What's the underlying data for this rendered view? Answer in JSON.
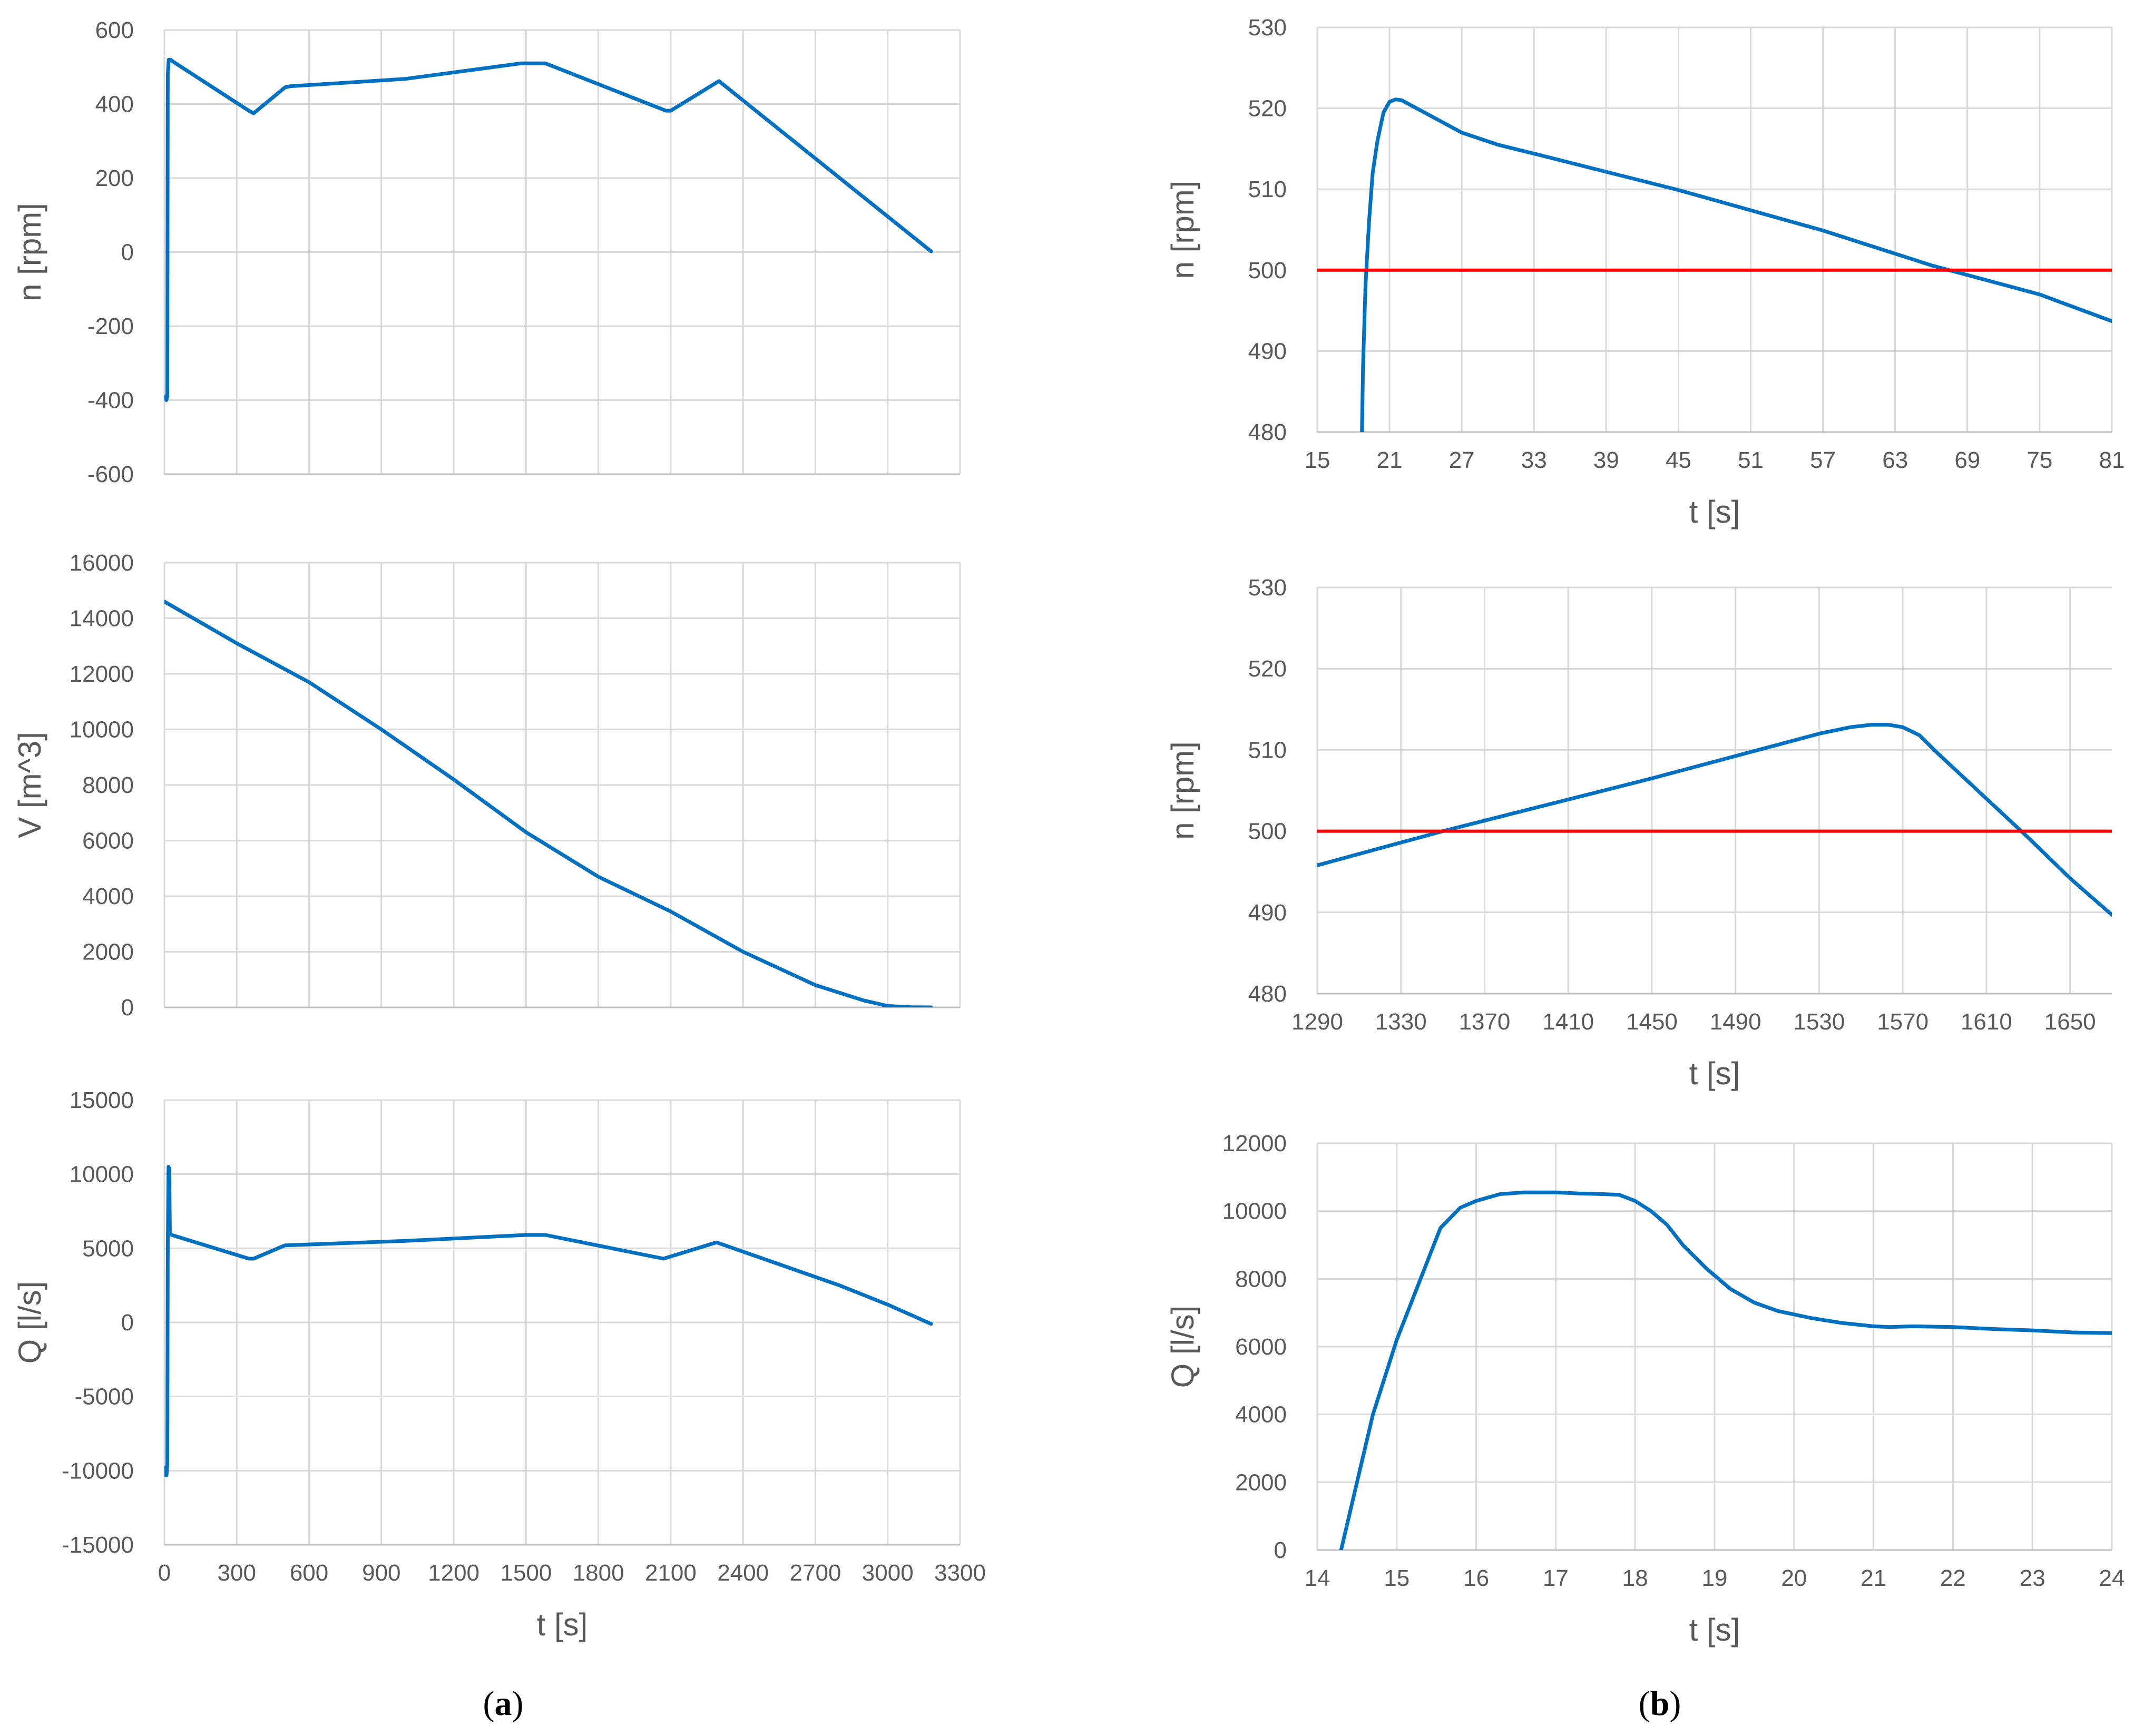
{
  "colors": {
    "series": "#0070c0",
    "reference": "#ff0000",
    "grid": "#d9d9d9",
    "text": "#595959"
  },
  "panel_labels": {
    "a": {
      "open": "(",
      "letter": "a",
      "close": ")"
    },
    "b": {
      "open": "(",
      "letter": "b",
      "close": ")"
    }
  },
  "chart_data": [
    {
      "id": "a1",
      "type": "line",
      "xlabel": "",
      "ylabel": "n [rpm]",
      "xlim": [
        0,
        3300
      ],
      "ylim": [
        -600,
        600
      ],
      "grid": true,
      "x_ticks_shown": false,
      "x_ticks": [
        0,
        300,
        600,
        900,
        1200,
        1500,
        1800,
        2100,
        2400,
        2700,
        3000,
        3300
      ],
      "y_ticks": [
        -600,
        -400,
        -200,
        0,
        200,
        400,
        600
      ],
      "series": [
        {
          "name": "n",
          "x": [
            0,
            8,
            12,
            14,
            18,
            25,
            35,
            350,
            370,
            500,
            520,
            1000,
            1480,
            1580,
            2080,
            2100,
            2300,
            3180
          ],
          "y": [
            -390,
            -400,
            -390,
            480,
            520,
            520,
            515,
            382,
            375,
            445,
            448,
            468,
            510,
            510,
            382,
            382,
            462,
            2
          ]
        }
      ]
    },
    {
      "id": "a2",
      "type": "line",
      "xlabel": "",
      "ylabel": "V [m^3]",
      "xlim": [
        0,
        3300
      ],
      "ylim": [
        0,
        16000
      ],
      "grid": true,
      "x_ticks_shown": false,
      "x_ticks": [
        0,
        300,
        600,
        900,
        1200,
        1500,
        1800,
        2100,
        2400,
        2700,
        3000,
        3300
      ],
      "y_ticks": [
        0,
        2000,
        4000,
        6000,
        8000,
        10000,
        12000,
        14000,
        16000
      ],
      "series": [
        {
          "name": "V",
          "x": [
            0,
            300,
            600,
            900,
            1200,
            1500,
            1800,
            2100,
            2400,
            2700,
            2900,
            3000,
            3100,
            3180
          ],
          "y": [
            14600,
            13100,
            11700,
            10000,
            8200,
            6300,
            4700,
            3450,
            2000,
            800,
            250,
            50,
            5,
            0
          ]
        }
      ]
    },
    {
      "id": "a3",
      "type": "line",
      "xlabel": "t [s]",
      "ylabel": "Q [l/s]",
      "xlim": [
        0,
        3300
      ],
      "ylim": [
        -15000,
        15000
      ],
      "grid": true,
      "x_ticks_shown": true,
      "x_ticks": [
        0,
        300,
        600,
        900,
        1200,
        1500,
        1800,
        2100,
        2400,
        2700,
        3000,
        3300
      ],
      "y_ticks": [
        -15000,
        -10000,
        -5000,
        0,
        5000,
        10000,
        15000
      ],
      "series": [
        {
          "name": "Q",
          "x": [
            0,
            5,
            9,
            12,
            14,
            17,
            20,
            23,
            30,
            350,
            370,
            500,
            1000,
            1500,
            1580,
            2070,
            2290,
            2800,
            3000,
            3180
          ],
          "y": [
            -10300,
            -9800,
            -10300,
            -9500,
            5000,
            10500,
            10400,
            6000,
            5900,
            4300,
            4300,
            5200,
            5500,
            5900,
            5900,
            4300,
            5400,
            2500,
            1200,
            -100
          ]
        }
      ]
    },
    {
      "id": "b1",
      "type": "line",
      "xlabel": "t [s]",
      "ylabel": "n [rpm]",
      "xlim": [
        15,
        81
      ],
      "ylim": [
        480,
        530
      ],
      "grid": true,
      "x_ticks_shown": true,
      "x_ticks": [
        15,
        21,
        27,
        33,
        39,
        45,
        51,
        57,
        63,
        69,
        75,
        81
      ],
      "y_ticks": [
        480,
        490,
        500,
        510,
        520,
        530
      ],
      "series": [
        {
          "name": "n",
          "x": [
            18.7,
            18.8,
            19,
            19.3,
            19.6,
            20,
            20.5,
            21,
            21.5,
            22,
            23,
            25,
            27,
            30,
            33,
            45,
            57,
            66,
            75,
            81
          ],
          "y": [
            479,
            488,
            498,
            506,
            512,
            516,
            519.5,
            520.8,
            521.1,
            521,
            520.2,
            518.6,
            517,
            515.5,
            514.4,
            509.9,
            504.9,
            500.6,
            497,
            493.7
          ]
        },
        {
          "name": "limit",
          "x": [
            15,
            81
          ],
          "y": [
            500,
            500
          ],
          "style": "reference"
        }
      ]
    },
    {
      "id": "b2",
      "type": "line",
      "xlabel": "t [s]",
      "ylabel": "n [rpm]",
      "xlim": [
        1290,
        1670
      ],
      "ylim": [
        480,
        530
      ],
      "grid": true,
      "x_ticks_shown": true,
      "x_ticks": [
        1290,
        1330,
        1370,
        1410,
        1450,
        1490,
        1530,
        1570,
        1610,
        1650
      ],
      "y_ticks": [
        480,
        490,
        500,
        510,
        520,
        530
      ],
      "series": [
        {
          "name": "n",
          "x": [
            1290,
            1350,
            1450,
            1530,
            1545,
            1555,
            1563,
            1570,
            1578,
            1585,
            1610,
            1630,
            1650,
            1670
          ],
          "y": [
            495.8,
            500,
            506.5,
            512,
            512.8,
            513.1,
            513.1,
            512.8,
            511.8,
            510,
            504,
            499.2,
            494.2,
            489.7
          ]
        },
        {
          "name": "limit",
          "x": [
            1290,
            1670
          ],
          "y": [
            500,
            500
          ],
          "style": "reference"
        }
      ]
    },
    {
      "id": "b3",
      "type": "line",
      "xlabel": "t [s]",
      "ylabel": "Q [l/s]",
      "xlim": [
        14,
        24
      ],
      "ylim": [
        0,
        12000
      ],
      "grid": true,
      "x_ticks_shown": true,
      "x_ticks": [
        14,
        15,
        16,
        17,
        18,
        19,
        20,
        21,
        22,
        23,
        24
      ],
      "y_ticks": [
        0,
        2000,
        4000,
        6000,
        8000,
        10000,
        12000
      ],
      "series": [
        {
          "name": "Q",
          "x": [
            14.3,
            14.5,
            14.7,
            15.0,
            15.3,
            15.55,
            15.8,
            16.0,
            16.3,
            16.6,
            17.0,
            17.3,
            17.6,
            17.8,
            18.0,
            18.2,
            18.4,
            18.6,
            18.9,
            19.2,
            19.5,
            19.8,
            20.2,
            20.6,
            21.0,
            21.2,
            21.5,
            22.0,
            22.5,
            23.0,
            23.5,
            24.0
          ],
          "y": [
            0,
            2000,
            4000,
            6200,
            8000,
            9500,
            10100,
            10300,
            10500,
            10550,
            10550,
            10520,
            10500,
            10480,
            10300,
            10000,
            9600,
            9000,
            8300,
            7700,
            7300,
            7050,
            6850,
            6700,
            6600,
            6580,
            6600,
            6580,
            6520,
            6480,
            6420,
            6400
          ]
        }
      ]
    }
  ]
}
